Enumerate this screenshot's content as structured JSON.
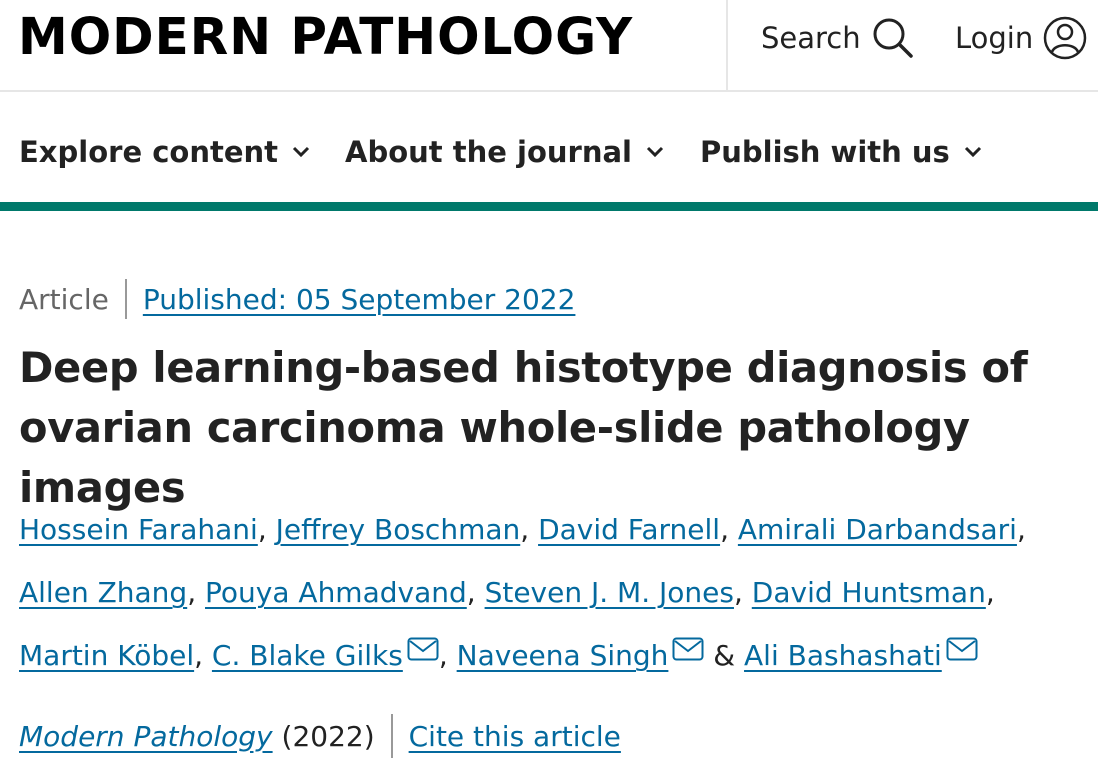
{
  "header": {
    "logo": "MODERN PATHOLOGY",
    "search_label": "Search",
    "search_icon": "search-icon",
    "login_label": "Login",
    "login_icon": "user-icon"
  },
  "nav": {
    "items": [
      {
        "label": "Explore content"
      },
      {
        "label": "About the journal"
      },
      {
        "label": "Publish with us"
      }
    ]
  },
  "accent_color": "#00796b",
  "link_color": "#04699e",
  "article": {
    "type": "Article",
    "published": "Published: 05 September 2022",
    "title": "Deep learning-based histotype diagnosis of ovarian carcinoma whole-slide pathology images",
    "authors": [
      {
        "name": "Hossein Farahani",
        "sep": ", "
      },
      {
        "name": "Jeffrey Boschman",
        "sep": ", "
      },
      {
        "name": "David Farnell",
        "sep": ", "
      },
      {
        "name": "Amirali Darbandsari",
        "sep": ", "
      },
      {
        "name": "Allen Zhang",
        "sep": ", "
      },
      {
        "name": "Pouya Ahmadvand",
        "sep": ", "
      },
      {
        "name": "Steven J. M. Jones",
        "sep": ", "
      },
      {
        "name": "David Huntsman",
        "sep": ", "
      },
      {
        "name": "Martin Köbel",
        "sep": ", "
      },
      {
        "name": "C. Blake Gilks",
        "sep": ", ",
        "email": true
      },
      {
        "name": "Naveena Singh",
        "sep": " & ",
        "email": true
      },
      {
        "name": "Ali Bashashati",
        "sep": "",
        "email": true
      }
    ],
    "journal": "Modern Pathology",
    "year": "(2022)",
    "cite_label": "Cite this article"
  }
}
